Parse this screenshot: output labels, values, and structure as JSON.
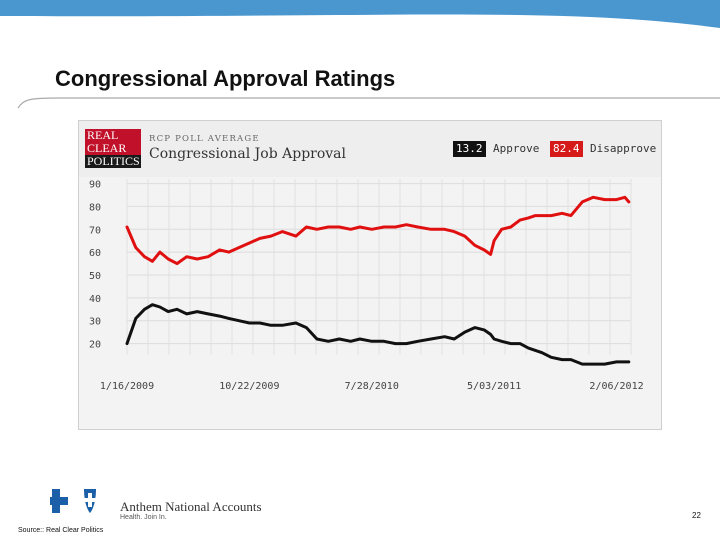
{
  "slide": {
    "title": "Congressional Approval Ratings",
    "source": "Source:: Real Clear Politics",
    "page_number": "22",
    "company_name": "Anthem National Accounts",
    "company_tagline": "Health. Join In."
  },
  "colors": {
    "header_blue": "#4a97d0",
    "approve": "#111111",
    "disapprove": "#e01010",
    "chart_bg": "#f3f3f3"
  },
  "chart_header": {
    "logo_lines": [
      "REAL",
      "CLEAR",
      "POLITICS"
    ],
    "kicker": "RCP POLL AVERAGE",
    "title": "Congressional Job Approval",
    "approve_value": "13.2",
    "approve_label": "Approve",
    "disapprove_value": "82.4",
    "disapprove_label": "Disapprove"
  },
  "chart_data": {
    "type": "line",
    "title": "Congressional Job Approval",
    "xlabel": "",
    "ylabel": "",
    "ylim": [
      15,
      92
    ],
    "yticks": [
      90,
      80,
      70,
      60,
      50,
      40,
      30,
      20
    ],
    "xlim": [
      "2009-01-16",
      "2012-03-10"
    ],
    "xticks": [
      "2009-01-16",
      "2009-10-22",
      "2010-07-28",
      "2011-05-03",
      "2012-02-06"
    ],
    "xtick_labels": [
      "1/16/2009",
      "10/22/2009",
      "7/28/2010",
      "5/03/2011",
      "2/06/2012"
    ],
    "grid": true,
    "legend": "top-right",
    "series": [
      {
        "name": "Disapprove",
        "color": "#e01010",
        "x": [
          "2009-01-16",
          "2009-02-05",
          "2009-02-25",
          "2009-03-15",
          "2009-04-01",
          "2009-04-20",
          "2009-05-10",
          "2009-06-01",
          "2009-06-25",
          "2009-07-20",
          "2009-08-15",
          "2009-09-05",
          "2009-09-28",
          "2009-10-22",
          "2009-11-15",
          "2009-12-10",
          "2010-01-05",
          "2010-02-05",
          "2010-03-01",
          "2010-03-25",
          "2010-04-20",
          "2010-05-15",
          "2010-06-10",
          "2010-07-01",
          "2010-07-28",
          "2010-08-25",
          "2010-09-20",
          "2010-10-15",
          "2010-11-10",
          "2010-12-10",
          "2011-01-10",
          "2011-02-01",
          "2011-02-25",
          "2011-03-20",
          "2011-04-10",
          "2011-04-25",
          "2011-05-03",
          "2011-05-20",
          "2011-06-10",
          "2011-07-01",
          "2011-07-20",
          "2011-08-05",
          "2011-08-20",
          "2011-09-10",
          "2011-10-05",
          "2011-10-25",
          "2011-11-20",
          "2011-12-15",
          "2012-01-10",
          "2012-02-06",
          "2012-02-25",
          "2012-03-05"
        ],
        "values": [
          71,
          62,
          58,
          56,
          60,
          57,
          55,
          58,
          57,
          58,
          61,
          60,
          62,
          64,
          66,
          67,
          69,
          67,
          71,
          70,
          71,
          71,
          70,
          71,
          70,
          71,
          71,
          72,
          71,
          70,
          70,
          69,
          67,
          63,
          61,
          59,
          65,
          70,
          71,
          74,
          75,
          76,
          76,
          76,
          77,
          76,
          82,
          84,
          83,
          83,
          84,
          82
        ]
      },
      {
        "name": "Approve",
        "color": "#111111",
        "x": [
          "2009-01-16",
          "2009-02-05",
          "2009-02-25",
          "2009-03-15",
          "2009-04-01",
          "2009-04-20",
          "2009-05-10",
          "2009-06-01",
          "2009-06-25",
          "2009-07-20",
          "2009-08-15",
          "2009-09-05",
          "2009-09-28",
          "2009-10-22",
          "2009-11-15",
          "2009-12-10",
          "2010-01-05",
          "2010-02-05",
          "2010-03-01",
          "2010-03-25",
          "2010-04-20",
          "2010-05-15",
          "2010-06-10",
          "2010-07-01",
          "2010-07-28",
          "2010-08-25",
          "2010-09-20",
          "2010-10-15",
          "2010-11-10",
          "2010-12-10",
          "2011-01-10",
          "2011-02-01",
          "2011-02-25",
          "2011-03-20",
          "2011-04-10",
          "2011-04-25",
          "2011-05-03",
          "2011-05-20",
          "2011-06-10",
          "2011-07-01",
          "2011-07-20",
          "2011-08-05",
          "2011-08-20",
          "2011-09-10",
          "2011-10-05",
          "2011-10-25",
          "2011-11-20",
          "2011-12-15",
          "2012-01-10",
          "2012-02-06",
          "2012-02-25",
          "2012-03-05"
        ],
        "values": [
          20,
          31,
          35,
          37,
          36,
          34,
          35,
          33,
          34,
          33,
          32,
          31,
          30,
          29,
          29,
          28,
          28,
          29,
          27,
          22,
          21,
          22,
          21,
          22,
          21,
          21,
          20,
          20,
          21,
          22,
          23,
          22,
          25,
          27,
          26,
          24,
          22,
          21,
          20,
          20,
          18,
          17,
          16,
          14,
          13,
          13,
          11,
          11,
          11,
          12,
          12,
          12
        ]
      }
    ]
  }
}
